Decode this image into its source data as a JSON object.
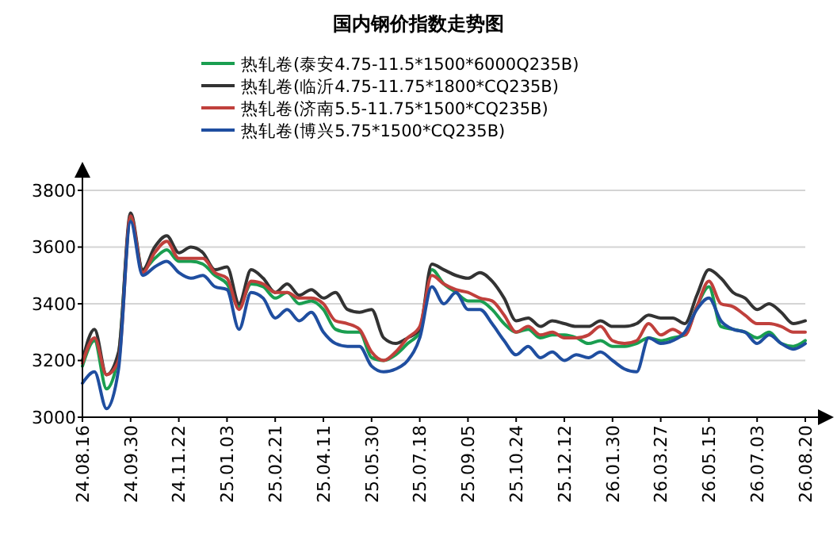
{
  "chart_data": {
    "type": "line",
    "title": "国内钢价指数走势图",
    "categories": [
      "24.08.16",
      null,
      null,
      null,
      "24.09.30",
      null,
      null,
      null,
      "24.11.22",
      null,
      null,
      null,
      "25.01.03",
      null,
      null,
      null,
      "25.02.21",
      null,
      null,
      null,
      "25.04.11",
      null,
      null,
      null,
      "25.05.30",
      null,
      null,
      null,
      "25.07.18",
      null,
      null,
      null,
      "25.09.05",
      null,
      null,
      null,
      "25.10.24",
      null,
      null,
      null,
      "25.12.12",
      null,
      null,
      null,
      "26.01.30",
      null,
      null,
      null,
      "26.03.27",
      null,
      null,
      null,
      "26.05.15",
      null,
      null,
      null,
      "26.07.03",
      null,
      null,
      null,
      "26.08.20"
    ],
    "series": [
      {
        "name": "热轧卷(泰安4.75-11.5*1500*6000Q235B)",
        "color": "#1a9e50",
        "values": [
          3180,
          3270,
          3100,
          3220,
          3700,
          3520,
          3560,
          3590,
          3550,
          3550,
          3540,
          3500,
          3470,
          3390,
          3470,
          3460,
          3420,
          3440,
          3400,
          3410,
          3380,
          3310,
          3300,
          3300,
          3210,
          3200,
          3220,
          3260,
          3300,
          3520,
          3470,
          3440,
          3410,
          3410,
          3380,
          3330,
          3300,
          3310,
          3280,
          3290,
          3290,
          3280,
          3260,
          3270,
          3250,
          3250,
          3260,
          3280,
          3270,
          3280,
          3290,
          3390,
          3460,
          3320,
          3310,
          3300,
          3280,
          3300,
          3260,
          3250,
          3270
        ]
      },
      {
        "name": "热轧卷(临沂4.75-11.75*1800*CQ235B)",
        "color": "#333333",
        "values": [
          3200,
          3310,
          3150,
          3230,
          3720,
          3520,
          3600,
          3640,
          3580,
          3600,
          3580,
          3520,
          3530,
          3400,
          3520,
          3490,
          3440,
          3470,
          3430,
          3450,
          3420,
          3440,
          3380,
          3370,
          3380,
          3280,
          3260,
          3280,
          3310,
          3540,
          3520,
          3500,
          3490,
          3510,
          3480,
          3420,
          3340,
          3350,
          3320,
          3340,
          3330,
          3320,
          3320,
          3340,
          3320,
          3320,
          3330,
          3360,
          3350,
          3350,
          3330,
          3430,
          3520,
          3490,
          3440,
          3420,
          3380,
          3400,
          3370,
          3330,
          3340
        ]
      },
      {
        "name": "热轧卷(济南5.5-11.75*1500*CQ235B)",
        "color": "#c0403c",
        "values": [
          3190,
          3280,
          3150,
          3200,
          3710,
          3510,
          3580,
          3620,
          3560,
          3560,
          3560,
          3510,
          3490,
          3380,
          3480,
          3470,
          3440,
          3440,
          3420,
          3420,
          3400,
          3340,
          3330,
          3310,
          3230,
          3200,
          3230,
          3280,
          3320,
          3500,
          3470,
          3450,
          3440,
          3420,
          3410,
          3360,
          3300,
          3320,
          3290,
          3300,
          3280,
          3280,
          3290,
          3320,
          3270,
          3260,
          3270,
          3330,
          3290,
          3310,
          3290,
          3390,
          3480,
          3400,
          3390,
          3360,
          3330,
          3330,
          3320,
          3300,
          3300
        ]
      },
      {
        "name": "热轧卷(博兴5.75*1500*CQ235B)",
        "color": "#1f4ea0",
        "values": [
          3120,
          3160,
          3030,
          3170,
          3690,
          3500,
          3530,
          3550,
          3510,
          3490,
          3500,
          3460,
          3450,
          3310,
          3440,
          3420,
          3350,
          3380,
          3340,
          3370,
          3300,
          3260,
          3250,
          3250,
          3180,
          3160,
          3170,
          3200,
          3280,
          3460,
          3400,
          3440,
          3380,
          3380,
          3330,
          3270,
          3220,
          3250,
          3210,
          3230,
          3200,
          3220,
          3210,
          3230,
          3200,
          3170,
          3160,
          3280,
          3260,
          3270,
          3300,
          3380,
          3420,
          3340,
          3310,
          3300,
          3260,
          3290,
          3260,
          3240,
          3260
        ]
      }
    ],
    "ylim": [
      3000,
      3800
    ],
    "yticks": [
      3000,
      3200,
      3400,
      3600,
      3800
    ],
    "grid": "y",
    "legend": "top",
    "line_style": "solid",
    "marker": "none"
  }
}
